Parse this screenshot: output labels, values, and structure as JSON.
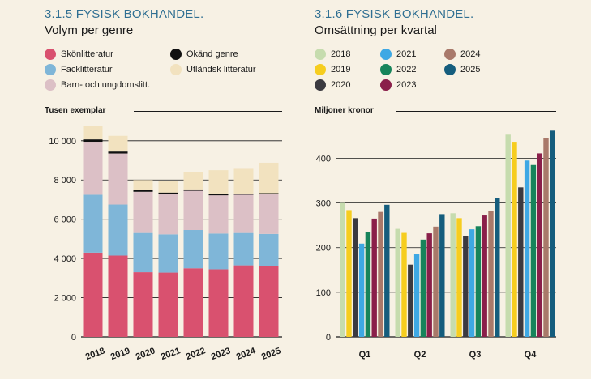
{
  "chart_data": [
    {
      "type": "bar",
      "stacked": true,
      "title": "3.1.5 FYSISK BOKHANDEL.",
      "subtitle": "Volym per genre",
      "ylabel": "Tusen exemplar",
      "ylim": [
        0,
        10500
      ],
      "yticks": [
        0,
        2000,
        4000,
        6000,
        8000,
        10000
      ],
      "ytick_labels": [
        "0",
        "2 000",
        "4 000",
        "6 000",
        "8 000",
        "10 000"
      ],
      "grid": "horizontal",
      "legend_position": "top",
      "categories": [
        "2018",
        "2019",
        "2020",
        "2021",
        "2022",
        "2023",
        "2024",
        "2025"
      ],
      "series": [
        {
          "name": "Skönlitteratur",
          "color": "#d9516f",
          "values": [
            4300,
            4150,
            3300,
            3280,
            3500,
            3450,
            3650,
            3600
          ]
        },
        {
          "name": "Facklitteratur",
          "color": "#7fb6d8",
          "values": [
            2950,
            2600,
            2000,
            1950,
            1950,
            1820,
            1650,
            1650
          ]
        },
        {
          "name": "Barn- och ungdomslitt.",
          "color": "#dcc0c6",
          "values": [
            2700,
            2600,
            2100,
            2050,
            2000,
            1950,
            1950,
            2050
          ]
        },
        {
          "name": "Okänd genre",
          "color": "#111111",
          "values": [
            120,
            100,
            80,
            80,
            70,
            50,
            30,
            30
          ]
        },
        {
          "name": "Utländsk litteratur",
          "color": "#f2e2bf",
          "values": [
            680,
            800,
            520,
            570,
            880,
            1230,
            1290,
            1550
          ]
        }
      ]
    },
    {
      "type": "bar",
      "title": "3.1.6 FYSISK BOKHANDEL.",
      "subtitle": "Omsättning per kvartal",
      "ylabel": "Miljoner kronor",
      "ylim": [
        0,
        470
      ],
      "yticks": [
        0,
        100,
        200,
        300,
        400
      ],
      "ytick_labels": [
        "0",
        "100",
        "200",
        "300",
        "400"
      ],
      "grid": "horizontal",
      "legend_position": "top",
      "categories": [
        "Q1",
        "Q2",
        "Q3",
        "Q4"
      ],
      "series": [
        {
          "name": "2018",
          "color": "#c6dcae",
          "values": [
            300,
            242,
            277,
            453
          ]
        },
        {
          "name": "2019",
          "color": "#f6cd1f",
          "values": [
            284,
            233,
            266,
            437
          ]
        },
        {
          "name": "2020",
          "color": "#3b3a40",
          "values": [
            266,
            162,
            226,
            335
          ]
        },
        {
          "name": "2021",
          "color": "#3ea8e4",
          "values": [
            209,
            185,
            241,
            395
          ]
        },
        {
          "name": "2022",
          "color": "#17845b",
          "values": [
            235,
            218,
            248,
            385
          ]
        },
        {
          "name": "2023",
          "color": "#8a1f4a",
          "values": [
            265,
            232,
            272,
            411
          ]
        },
        {
          "name": "2024",
          "color": "#a9796a",
          "values": [
            280,
            247,
            283,
            445
          ]
        },
        {
          "name": "2025",
          "color": "#155d7d",
          "values": [
            296,
            275,
            311,
            462
          ]
        }
      ]
    }
  ]
}
